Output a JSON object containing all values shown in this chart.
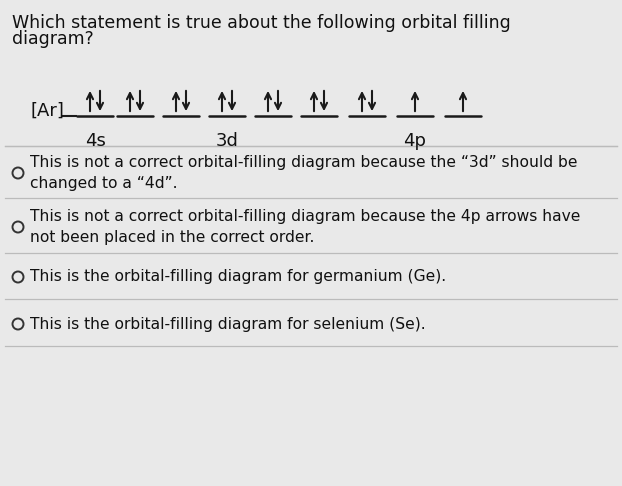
{
  "bg_color": "#e9e9e9",
  "title_line1": "Which statement is true about the following orbital filling",
  "title_line2": "diagram?",
  "title_fontsize": 12.5,
  "ar_label": "[Ar]",
  "orbital_labels": [
    "4s",
    "3d",
    "4p"
  ],
  "option_fontsize": 11.2,
  "line_color": "#1a1a1a",
  "arrow_color": "#1a1a1a",
  "circle_color": "#333333",
  "divider_color": "#bbbbbb",
  "text_color": "#111111",
  "options": [
    "This is not a correct orbital-filling diagram because the “3d” should be\nchanged to a “4d”.",
    "This is not a correct orbital-filling diagram because the 4p arrows have\nnot been placed in the correct order.",
    "This is the orbital-filling diagram for germanium (Ge).",
    "This is the orbital-filling diagram for selenium (Se)."
  ]
}
